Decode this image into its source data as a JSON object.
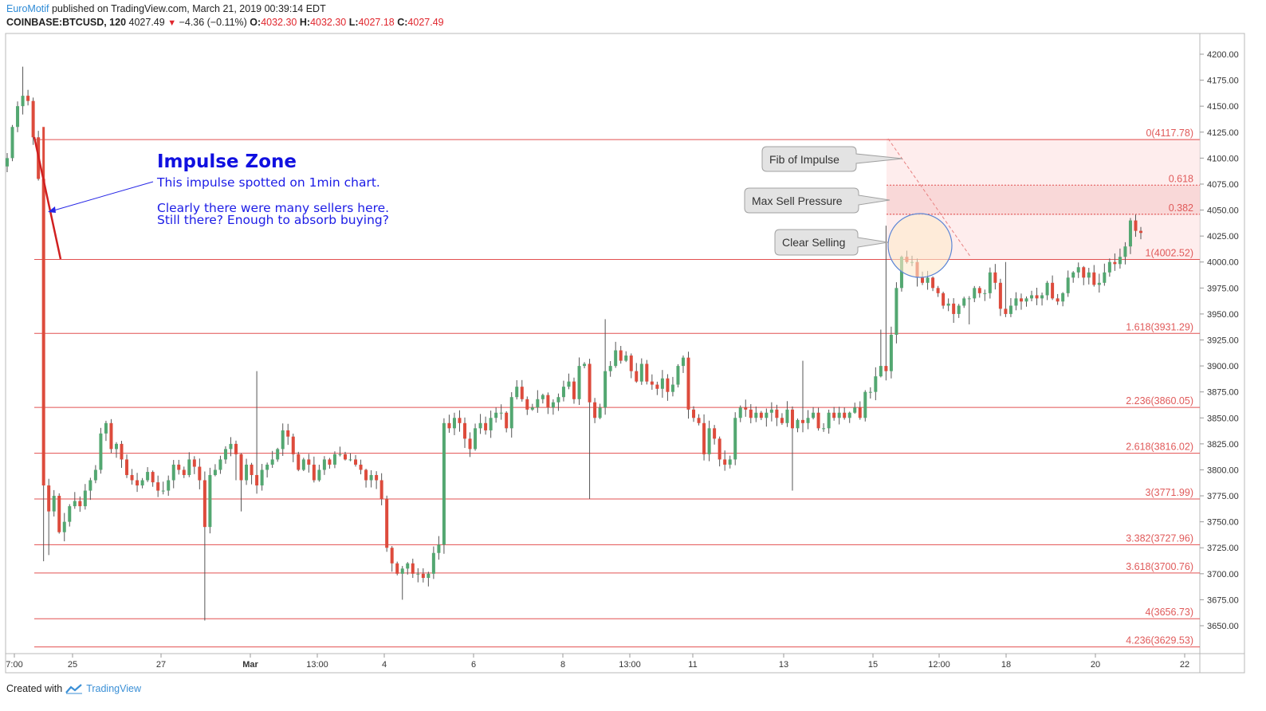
{
  "header": {
    "author": "EuroMotif",
    "published": " published on TradingView.com, March 21, 2019 00:39:14 EDT",
    "symbol": "COINBASE:BTCUSD, 120",
    "last": "4027.49",
    "change": "−4.36 (−0.11%)",
    "o_label": "O:",
    "o_val": "4032.30",
    "h_label": "H:",
    "h_val": "4032.30",
    "l_label": "L:",
    "l_val": "4027.18",
    "c_label": "C:",
    "c_val": "4027.49"
  },
  "footer": {
    "created_with": "Created with",
    "brand": "TradingView"
  },
  "chart_data": {
    "type": "candlestick",
    "symbol": "COINBASE:BTCUSD",
    "interval": "120",
    "ylim": [
      3626,
      4232
    ],
    "y_ticks": [
      "4200.00",
      "4175.00",
      "4150.00",
      "4125.00",
      "4100.00",
      "4075.00",
      "4050.00",
      "4025.00",
      "4000.00",
      "3975.00",
      "3950.00",
      "3925.00",
      "3900.00",
      "3875.00",
      "3850.00",
      "3825.00",
      "3800.00",
      "3775.00",
      "3750.00",
      "3725.00",
      "3700.00",
      "3675.00",
      "3650.00"
    ],
    "x_ticks": [
      "7:00",
      "25",
      "27",
      "Mar",
      "13:00",
      "4",
      "6",
      "8",
      "13:00",
      "11",
      "13",
      "15",
      "12:00",
      "18",
      "20",
      "22"
    ],
    "fib_levels": [
      {
        "label": "0(4117.78)",
        "price": 4117.78
      },
      {
        "label": "0.618",
        "price": 4074.0
      },
      {
        "label": "0.382",
        "price": 4046.0
      },
      {
        "label": "1(4002.52)",
        "price": 4002.52
      },
      {
        "label": "1.618(3931.29)",
        "price": 3931.29
      },
      {
        "label": "2.236(3860.05)",
        "price": 3860.05
      },
      {
        "label": "2.618(3816.02)",
        "price": 3816.02
      },
      {
        "label": "3(3771.99)",
        "price": 3771.99
      },
      {
        "label": "3.382(3727.96)",
        "price": 3727.96
      },
      {
        "label": "3.618(3700.76)",
        "price": 3700.76
      },
      {
        "label": "4(3656.73)",
        "price": 3656.73
      },
      {
        "label": "4.236(3629.53)",
        "price": 3629.53
      }
    ],
    "annotations": {
      "impulse_title": "Impulse Zone",
      "impulse_line1": "This impulse spotted on 1min chart.",
      "impulse_line2": "Clearly there were many sellers here.",
      "impulse_line3": "Still there?  Enough to absorb buying?",
      "callout_fib": "Fib of Impulse",
      "callout_max": "Max Sell Pressure",
      "callout_clear": "Clear Selling"
    },
    "closes": [
      4100,
      4130,
      4150,
      4160,
      4155,
      4120,
      4080,
      3785,
      3760,
      3775,
      3740,
      3750,
      3765,
      3770,
      3765,
      3780,
      3790,
      3800,
      3835,
      3845,
      3820,
      3825,
      3810,
      3795,
      3790,
      3785,
      3790,
      3798,
      3788,
      3780,
      3780,
      3790,
      3805,
      3800,
      3795,
      3810,
      3803,
      3790,
      3745,
      3795,
      3800,
      3810,
      3820,
      3825,
      3815,
      3790,
      3805,
      3795,
      3785,
      3800,
      3805,
      3810,
      3820,
      3838,
      3832,
      3815,
      3800,
      3810,
      3805,
      3790,
      3800,
      3810,
      3805,
      3815,
      3815,
      3810,
      3810,
      3805,
      3800,
      3790,
      3795,
      3790,
      3772,
      3725,
      3710,
      3700,
      3705,
      3710,
      3700,
      3700,
      3696,
      3700,
      3720,
      3728,
      3845,
      3840,
      3850,
      3845,
      3830,
      3820,
      3840,
      3845,
      3838,
      3850,
      3855,
      3855,
      3840,
      3870,
      3880,
      3868,
      3858,
      3860,
      3868,
      3872,
      3860,
      3865,
      3870,
      3880,
      3885,
      3868,
      3900,
      3902,
      3865,
      3850,
      3860,
      3895,
      3900,
      3915,
      3905,
      3910,
      3895,
      3885,
      3902,
      3885,
      3882,
      3878,
      3888,
      3875,
      3882,
      3900,
      3908,
      3858,
      3850,
      3845,
      3815,
      3840,
      3830,
      3810,
      3805,
      3810,
      3850,
      3860,
      3858,
      3850,
      3855,
      3850,
      3855,
      3858,
      3850,
      3845,
      3858,
      3840,
      3848,
      3845,
      3850,
      3855,
      3840,
      3840,
      3855,
      3850,
      3855,
      3850,
      3855,
      3860,
      3850,
      3875,
      3875,
      3890,
      3900,
      3895,
      3930,
      3975,
      4005,
      4000,
      4000,
      3985,
      3980,
      3985,
      3975,
      3970,
      3958,
      3960,
      3950,
      3958,
      3965,
      3965,
      3975,
      3970,
      3970,
      3990,
      3980,
      3955,
      3950,
      3958,
      3965,
      3962,
      3965,
      3968,
      3965,
      3968,
      3980,
      3965,
      3962,
      3970,
      3985,
      3990,
      3995,
      3985,
      3990,
      3978,
      3980,
      3990,
      4000,
      3998,
      4005,
      4015,
      4040,
      4030,
      4028
    ]
  }
}
